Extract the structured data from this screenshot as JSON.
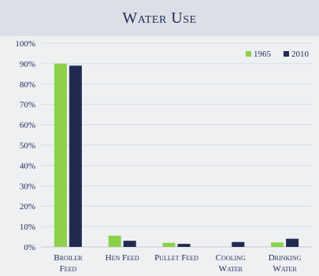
{
  "chart_data": {
    "type": "bar",
    "title": "Water Use",
    "categories": [
      [
        "Broiler",
        "Feed"
      ],
      [
        "Hen Feed"
      ],
      [
        "Pullet Feed"
      ],
      [
        "Cooling",
        "Water"
      ],
      [
        "Drinking",
        "Water"
      ]
    ],
    "series": [
      {
        "name": "1965",
        "color": "#8dd04a",
        "values": [
          90,
          5.5,
          2,
          0,
          2.2
        ]
      },
      {
        "name": "2010",
        "color": "#232a52",
        "values": [
          89,
          3,
          1.5,
          2.4,
          4
        ]
      }
    ],
    "ylim": [
      0,
      100
    ],
    "yticks": [
      "0%",
      "10%",
      "20%",
      "30%",
      "40%",
      "50%",
      "60%",
      "70%",
      "80%",
      "90%",
      "100%"
    ],
    "legend_position": "top-right",
    "grid": true
  }
}
